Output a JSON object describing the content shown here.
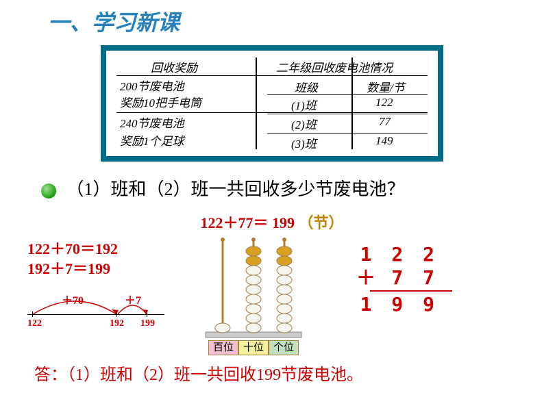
{
  "title": "一、学习新课",
  "board": {
    "border_color": "#006c86",
    "left_header": "回收奖励",
    "right_header": "二年级回收废电池情况",
    "left_rows": [
      "200节废电池",
      "奖励10把手电筒",
      "240节废电池",
      "奖励1个足球"
    ],
    "right_cols": [
      "班级",
      "数量/节"
    ],
    "right_rows": [
      [
        "(1)班",
        "122"
      ],
      [
        "(2)班",
        "77"
      ],
      [
        "(3)班",
        "149"
      ]
    ]
  },
  "question": "（1）班和（2）班一共回收多少节废电池？",
  "main_equation": {
    "left": "122＋77＝",
    "result": "199",
    "unit": "（节）"
  },
  "steps": [
    "122＋70＝192",
    "192＋7＝199"
  ],
  "numline": {
    "arc1_label": "＋70",
    "arc2_label": "＋7",
    "marks": [
      "122",
      "192",
      "199"
    ],
    "color": "#cc0000"
  },
  "abacus": {
    "rod_color": "#b08030",
    "bead_white": "#f5f5f0",
    "bead_gold": "#d8a020",
    "bead_outline": "#a08050",
    "places": [
      {
        "label": "百位",
        "bg": "#f0c0d0",
        "dark": 0,
        "light": 1
      },
      {
        "label": "十位",
        "bg": "#f0f0a0",
        "dark": 2,
        "light": 7
      },
      {
        "label": "个位",
        "bg": "#c0e0c0",
        "dark": 2,
        "light": 7
      }
    ],
    "base_color": "#ccc"
  },
  "vertical": {
    "a": "1 2 2",
    "b": "7 7",
    "sum": "1 9 9",
    "op": "＋",
    "color": "#cc0000"
  },
  "answer": "答：（1）班和（2）班一共回收199节废电池。"
}
